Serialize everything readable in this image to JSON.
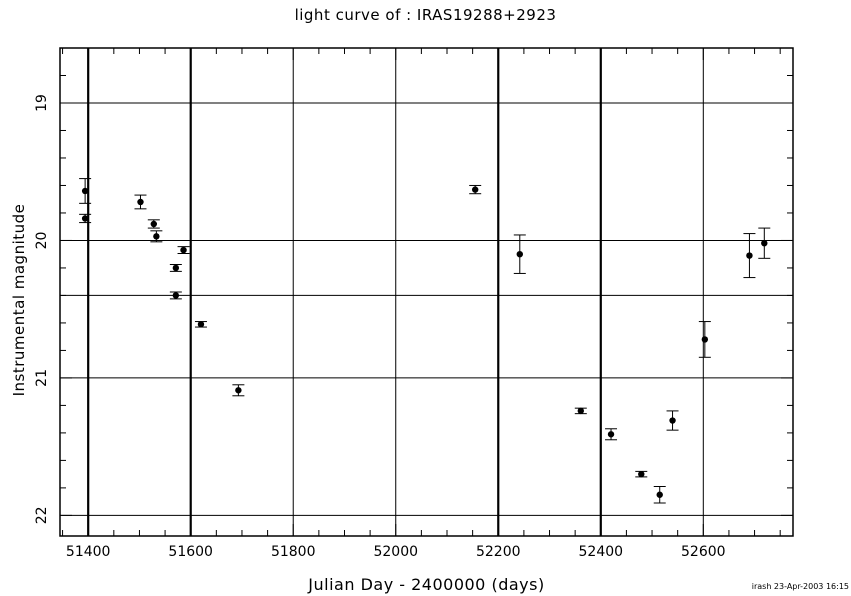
{
  "chart_data": {
    "type": "scatter",
    "title": "light curve of : IRAS19288+2923",
    "xlabel": "Julian Day - 2400000 (days)",
    "ylabel": "Instrumental magnitude",
    "xlim": [
      51345,
      52775
    ],
    "ylim": [
      22.15,
      18.6
    ],
    "y_inverted": true,
    "x_ticks": [
      51400,
      51600,
      51800,
      52000,
      52200,
      52400,
      52600
    ],
    "y_ticks": [
      19,
      20,
      21,
      22
    ],
    "x_grid": [
      51400,
      51600,
      51800,
      52000,
      52200,
      52400,
      52600
    ],
    "x_grid_bold": [
      51400,
      51600,
      52200,
      52400
    ],
    "y_grid": [
      19,
      20,
      20.4,
      21,
      22
    ],
    "x_minor_step": 50,
    "y_minor_step": 0.2,
    "points": [
      {
        "x": 51394,
        "y": 19.64,
        "err": 0.09
      },
      {
        "x": 51394,
        "y": 19.84,
        "err": 0.03
      },
      {
        "x": 51502,
        "y": 19.72,
        "err": 0.05
      },
      {
        "x": 51528,
        "y": 19.88,
        "err": 0.03
      },
      {
        "x": 51533,
        "y": 19.97,
        "err": 0.04
      },
      {
        "x": 51571,
        "y": 20.2,
        "err": 0.025
      },
      {
        "x": 51571,
        "y": 20.4,
        "err": 0.025
      },
      {
        "x": 51586,
        "y": 20.07,
        "err": 0.025
      },
      {
        "x": 51620,
        "y": 20.61,
        "err": 0.02
      },
      {
        "x": 51693,
        "y": 21.09,
        "err": 0.04
      },
      {
        "x": 52155,
        "y": 19.63,
        "err": 0.03
      },
      {
        "x": 52242,
        "y": 20.1,
        "err": 0.14
      },
      {
        "x": 52361,
        "y": 21.24,
        "err": 0.02
      },
      {
        "x": 52420,
        "y": 21.41,
        "err": 0.04
      },
      {
        "x": 52479,
        "y": 21.7,
        "err": 0.02
      },
      {
        "x": 52515,
        "y": 21.85,
        "err": 0.06
      },
      {
        "x": 52540,
        "y": 21.31,
        "err": 0.07
      },
      {
        "x": 52603,
        "y": 20.72,
        "err": 0.13
      },
      {
        "x": 52690,
        "y": 20.11,
        "err": 0.16
      },
      {
        "x": 52719,
        "y": 20.02,
        "err": 0.11
      }
    ]
  },
  "footer": "irash 23-Apr-2003 16:15"
}
